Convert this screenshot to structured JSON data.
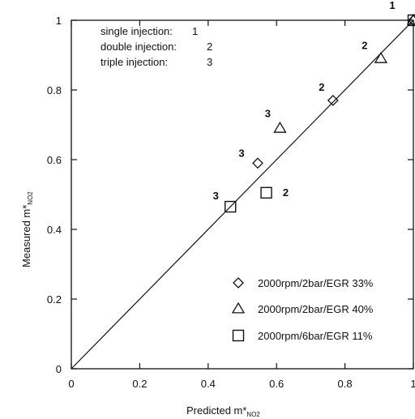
{
  "chart_data": {
    "type": "scatter",
    "title": "",
    "xlabel": "Predicted m*",
    "xlabel_sub": "NO2",
    "ylabel": "Measured m*",
    "ylabel_sub": "NO2",
    "xlim": [
      0,
      1
    ],
    "ylim": [
      0,
      1
    ],
    "xticks": [
      0,
      0.2,
      0.4,
      0.6,
      0.8,
      1
    ],
    "yticks": [
      0,
      0.2,
      0.4,
      0.6,
      0.8,
      1
    ],
    "xtick_labels": [
      "0",
      "0.2",
      "0.4",
      "0.6",
      "0.8",
      "1"
    ],
    "ytick_labels": [
      "0",
      "0.2",
      "0.4",
      "0.6",
      "0.8",
      "1"
    ],
    "grid": false,
    "legend_position": "bottom-right",
    "reference_line": {
      "from": [
        0,
        0
      ],
      "to": [
        1,
        1
      ]
    },
    "notes": [
      {
        "text": "single injection:",
        "value": "1"
      },
      {
        "text": "double injection:",
        "value": "2"
      },
      {
        "text": "triple injection:",
        "value": "3"
      }
    ],
    "series": [
      {
        "name": "2000rpm/2bar/EGR 33%",
        "marker": "diamond",
        "points": [
          {
            "x": 1.0,
            "y": 1.0,
            "label": "1"
          },
          {
            "x": 0.765,
            "y": 0.77,
            "label": "2"
          },
          {
            "x": 0.545,
            "y": 0.59,
            "label": "3"
          }
        ]
      },
      {
        "name": "2000rpm/2bar/EGR 40%",
        "marker": "triangle",
        "points": [
          {
            "x": 1.0,
            "y": 1.0,
            "label": "1"
          },
          {
            "x": 0.905,
            "y": 0.89,
            "label": "2"
          },
          {
            "x": 0.61,
            "y": 0.69,
            "label": "3"
          }
        ]
      },
      {
        "name": "2000rpm/6bar/EGR 11%",
        "marker": "square",
        "points": [
          {
            "x": 1.0,
            "y": 1.0,
            "label": "1"
          },
          {
            "x": 0.57,
            "y": 0.505,
            "label": "2"
          },
          {
            "x": 0.465,
            "y": 0.465,
            "label": "3"
          }
        ]
      }
    ]
  }
}
